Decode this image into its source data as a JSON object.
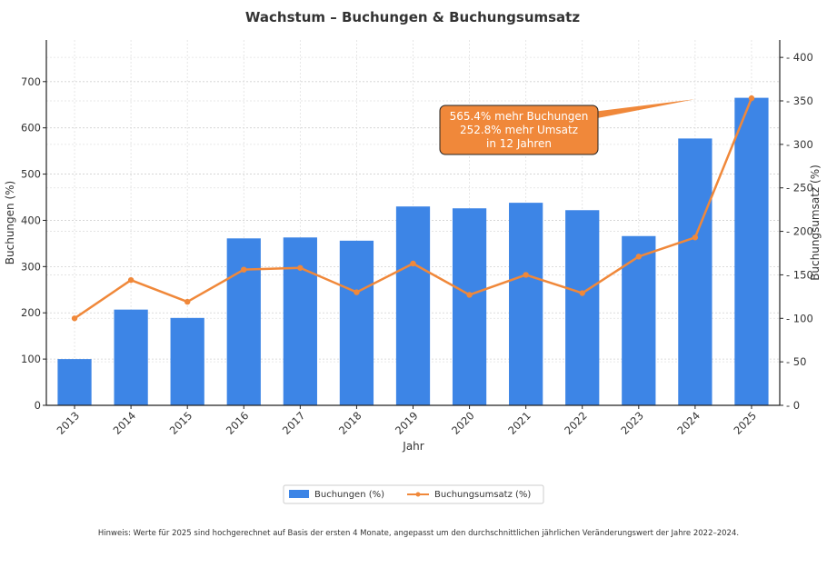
{
  "chart_data": {
    "type": "bar",
    "title": "Wachstum – Buchungen & Buchungsumsatz",
    "xlabel": "Jahr",
    "categories": [
      "2013",
      "2014",
      "2015",
      "2016",
      "2017",
      "2018",
      "2019",
      "2020",
      "2021",
      "2022",
      "2023",
      "2024",
      "2025"
    ],
    "series": [
      {
        "name": "Buchungen (%)",
        "type": "bar",
        "axis": "left",
        "color": "#3d85e6",
        "values": [
          100,
          207,
          189,
          361,
          363,
          356,
          430,
          426,
          438,
          422,
          366,
          577,
          665
        ]
      },
      {
        "name": "Buchungsumsatz (%)",
        "type": "line",
        "axis": "right",
        "color": "#f0883a",
        "values": [
          100,
          144,
          119,
          156,
          158,
          130,
          163,
          127,
          150,
          129,
          171,
          193,
          353
        ]
      }
    ],
    "ylabel": "Buchungen (%)",
    "ylim": [
      0,
      790
    ],
    "yticks": [
      0,
      100,
      200,
      300,
      400,
      500,
      600,
      700
    ],
    "y2label": "Buchungsumsatz (%)",
    "y2lim": [
      0,
      420
    ],
    "y2ticks": [
      0,
      50,
      100,
      150,
      200,
      250,
      300,
      350,
      400
    ],
    "grid": true,
    "legend_placement": "bottom-center",
    "annotation": {
      "lines": [
        "565.4% mehr Buchungen",
        "252.8% mehr Umsatz",
        "in 12 Jahren"
      ],
      "color": "#f0883a",
      "points_to": {
        "category": "2024",
        "y2": 352
      }
    },
    "note": "Hinweis: Werte für 2025 sind hochgerechnet auf Basis der ersten 4 Monate, angepasst um den durchschnittlichen jährlichen Veränderungswert der Jahre 2022–2024."
  }
}
